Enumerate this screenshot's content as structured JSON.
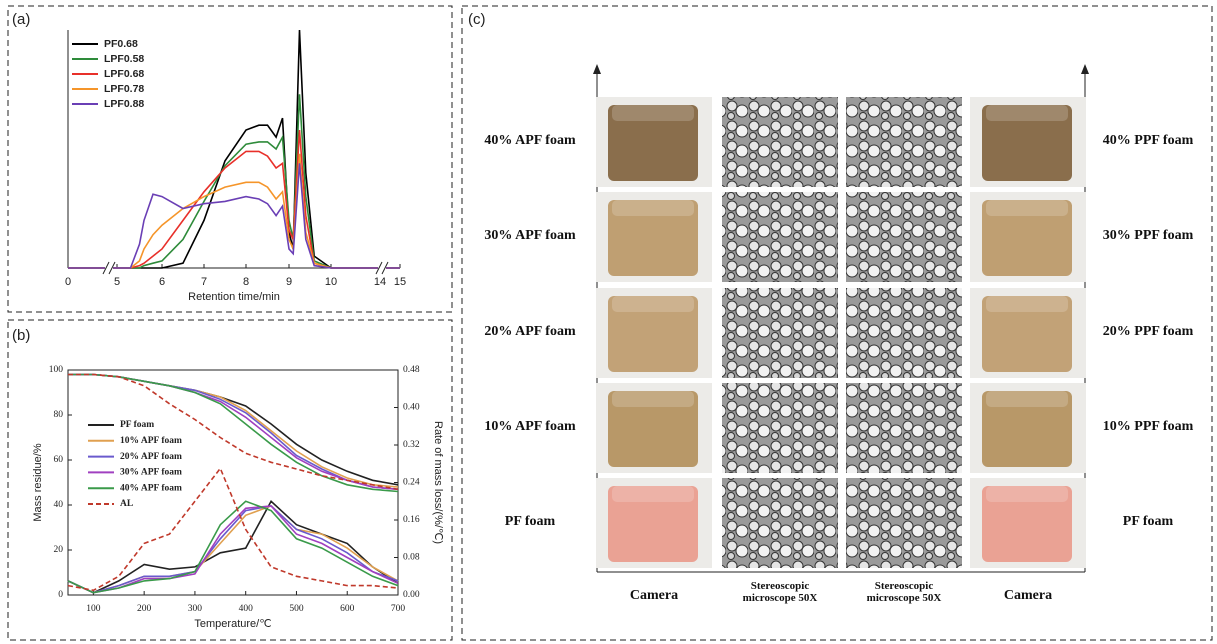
{
  "chart_data": [
    {
      "label": "(a)",
      "type": "line",
      "xlabel": "Retention time/min",
      "x": [
        0,
        5,
        5.3,
        5.5,
        5.6,
        5.8,
        6,
        6.5,
        7,
        7.5,
        8,
        8.3,
        8.5,
        8.7,
        8.85,
        9,
        9.1,
        9.25,
        9.4,
        9.6,
        10,
        14,
        15
      ],
      "xlim": [
        0,
        15
      ],
      "xticks": [
        0,
        5,
        6,
        7,
        8,
        9,
        10,
        14,
        15
      ],
      "ylim": [
        0,
        100
      ],
      "series": [
        {
          "name": "PF0.68",
          "color": "#000000",
          "values": [
            0,
            0,
            0,
            0,
            0,
            0,
            0,
            2,
            20,
            45,
            58,
            60,
            60,
            55,
            63,
            15,
            8,
            100,
            40,
            5,
            0,
            0,
            0
          ]
        },
        {
          "name": "LPF0.58",
          "color": "#2e8b3a",
          "values": [
            0,
            0,
            0,
            0,
            1,
            2,
            3,
            12,
            28,
            43,
            52,
            53,
            53,
            50,
            55,
            20,
            12,
            73,
            30,
            3,
            0,
            0,
            0
          ]
        },
        {
          "name": "LPF0.68",
          "color": "#e8302a",
          "values": [
            0,
            0,
            0,
            1,
            2,
            5,
            8,
            20,
            32,
            42,
            49,
            49,
            47,
            42,
            44,
            16,
            12,
            58,
            22,
            2,
            0,
            0,
            0
          ]
        },
        {
          "name": "LPF0.78",
          "color": "#f5952a",
          "values": [
            0,
            0,
            0,
            3,
            8,
            14,
            18,
            25,
            30,
            34,
            36,
            36,
            34,
            29,
            32,
            12,
            8,
            48,
            15,
            2,
            0,
            0,
            0
          ]
        },
        {
          "name": "LPF0.88",
          "color": "#6a3fb5",
          "values": [
            0,
            0,
            0,
            10,
            20,
            31,
            30,
            25,
            27,
            28,
            30,
            29,
            27,
            22,
            26,
            8,
            6,
            44,
            12,
            1,
            0,
            0,
            0
          ]
        }
      ]
    },
    {
      "label": "(b)",
      "type": "line",
      "xlabel": "Temperature/℃",
      "ylabel": "Mass residue/%",
      "y2label": "Rate of mass loss/(%/℃)",
      "x": [
        50,
        100,
        150,
        200,
        250,
        300,
        350,
        400,
        450,
        500,
        550,
        600,
        650,
        700
      ],
      "xlim": [
        50,
        700
      ],
      "xticks": [
        100,
        200,
        300,
        400,
        500,
        600,
        700
      ],
      "ylim": [
        0,
        100
      ],
      "yticks": [
        0,
        20,
        40,
        60,
        80,
        100
      ],
      "y2lim": [
        0,
        0.48
      ],
      "y2ticks": [
        {
          "value": 0,
          "label": "0.00"
        },
        {
          "value": 0.08,
          "label": "0.08"
        },
        {
          "value": 0.16,
          "label": "0.16"
        },
        {
          "value": 0.24,
          "label": "0.24"
        },
        {
          "value": 0.32,
          "label": "0.32"
        },
        {
          "value": 0.4,
          "label": "0.40"
        },
        {
          "value": 0.48,
          "label": "0.48"
        }
      ],
      "series": [
        {
          "name": "PF foam",
          "color": "#222222",
          "values": [
            98,
            98,
            97,
            95,
            93,
            91,
            88,
            84,
            76,
            67,
            60,
            55,
            51,
            49
          ]
        },
        {
          "name": "10% APF foam",
          "color": "#e0a050",
          "values": [
            98,
            98,
            97,
            95,
            93,
            91,
            88,
            82,
            73,
            64,
            57,
            52,
            49,
            48
          ]
        },
        {
          "name": "20% APF foam",
          "color": "#6a5acd",
          "values": [
            98,
            98,
            97,
            95,
            93,
            91,
            87,
            81,
            72,
            62,
            56,
            51,
            48,
            47
          ]
        },
        {
          "name": "30% APF foam",
          "color": "#a040c0",
          "values": [
            98,
            98,
            97,
            95,
            93,
            90,
            86,
            79,
            70,
            61,
            55,
            51,
            48,
            47
          ]
        },
        {
          "name": "40% APF foam",
          "color": "#3a9a4a",
          "values": [
            98,
            98,
            97,
            95,
            93,
            90,
            85,
            76,
            67,
            59,
            53,
            49,
            47,
            46
          ]
        },
        {
          "name": "AL",
          "color": "#c0392b",
          "dash": true,
          "values": [
            98,
            98,
            97,
            93,
            85,
            78,
            70,
            63,
            59,
            56,
            53,
            51,
            49,
            47
          ]
        },
        {
          "axis": "y2",
          "color": "#222222",
          "values": [
            0.03,
            0.005,
            0.03,
            0.065,
            0.055,
            0.06,
            0.09,
            0.1,
            0.2,
            0.15,
            0.13,
            0.11,
            0.06,
            0.025
          ]
        },
        {
          "axis": "y2",
          "color": "#e0a050",
          "values": [
            0.03,
            0.005,
            0.02,
            0.04,
            0.04,
            0.05,
            0.11,
            0.17,
            0.19,
            0.14,
            0.13,
            0.1,
            0.06,
            0.03
          ]
        },
        {
          "axis": "y2",
          "color": "#6a5acd",
          "values": [
            0.03,
            0.005,
            0.02,
            0.04,
            0.04,
            0.05,
            0.12,
            0.18,
            0.19,
            0.14,
            0.12,
            0.09,
            0.05,
            0.03
          ]
        },
        {
          "axis": "y2",
          "color": "#a040c0",
          "values": [
            0.03,
            0.005,
            0.015,
            0.035,
            0.035,
            0.045,
            0.13,
            0.185,
            0.19,
            0.13,
            0.11,
            0.08,
            0.05,
            0.025
          ]
        },
        {
          "axis": "y2",
          "color": "#3a9a4a",
          "values": [
            0.03,
            0.005,
            0.015,
            0.03,
            0.035,
            0.05,
            0.15,
            0.2,
            0.18,
            0.12,
            0.1,
            0.07,
            0.04,
            0.02
          ]
        },
        {
          "axis": "y2",
          "color": "#c0392b",
          "dash": true,
          "values": [
            0.02,
            0.01,
            0.04,
            0.11,
            0.13,
            0.2,
            0.27,
            0.14,
            0.06,
            0.04,
            0.03,
            0.02,
            0.02,
            0.015
          ]
        }
      ]
    }
  ],
  "panel_c": {
    "label": "(c)",
    "rows": [
      {
        "left": "40% APF foam",
        "right": "40% PPF foam"
      },
      {
        "left": "30% APF foam",
        "right": "30% PPF foam"
      },
      {
        "left": "20% APF foam",
        "right": "20% PPF foam"
      },
      {
        "left": "10% APF foam",
        "right": "10% PPF foam"
      },
      {
        "left": "PF foam",
        "right": "PF foam"
      }
    ],
    "columns": [
      "Camera",
      "Stereoscopic microscope  50X",
      "Stereoscopic microscope  50X",
      "Camera"
    ]
  }
}
